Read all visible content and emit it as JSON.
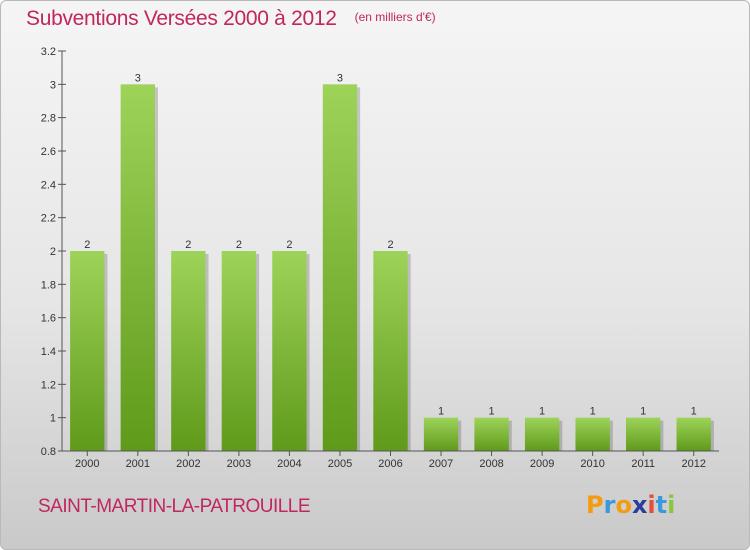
{
  "chart_data": {
    "type": "bar",
    "title": "Subventions Versées 2000 à 2012",
    "subtitle": "(en milliers d'€)",
    "categories": [
      "2000",
      "2001",
      "2002",
      "2003",
      "2004",
      "2005",
      "2006",
      "2007",
      "2008",
      "2009",
      "2010",
      "2011",
      "2012"
    ],
    "values": [
      2,
      3,
      2,
      2,
      2,
      3,
      2,
      1,
      1,
      1,
      1,
      1,
      1
    ],
    "data_labels": [
      "2",
      "3",
      "2",
      "2",
      "2",
      "3",
      "2",
      "1",
      "1",
      "1",
      "1",
      "1",
      "1"
    ],
    "ylim": [
      0.8,
      3.2
    ],
    "yticks": [
      0.8,
      1,
      1.2,
      1.4,
      1.6,
      1.8,
      2,
      2.2,
      2.4,
      2.6,
      2.8,
      3,
      3.2
    ],
    "ytick_labels": [
      "0.8",
      "1",
      "1.2",
      "1.4",
      "1.6",
      "1.8",
      "2",
      "2.2",
      "2.4",
      "2.6",
      "2.8",
      "3",
      "3.2"
    ],
    "grid": false,
    "bar_color": "#8cc63f",
    "bar_color_dark": "#5f9a1a",
    "xlabel": "",
    "ylabel": ""
  },
  "footer": {
    "commune": "SAINT-MARTIN-LA-PATROUILLE",
    "logo_letters": [
      "P",
      "r",
      "o",
      "x",
      "i",
      "t",
      "i"
    ],
    "logo_colors": [
      "#f39c12",
      "#3a9ad9",
      "#f39c12",
      "#2c3e9c",
      "#e74c3c",
      "#3a9ad9",
      "#8cc63f"
    ]
  },
  "colors": {
    "title": "#c0265f",
    "axis": "#555555"
  }
}
